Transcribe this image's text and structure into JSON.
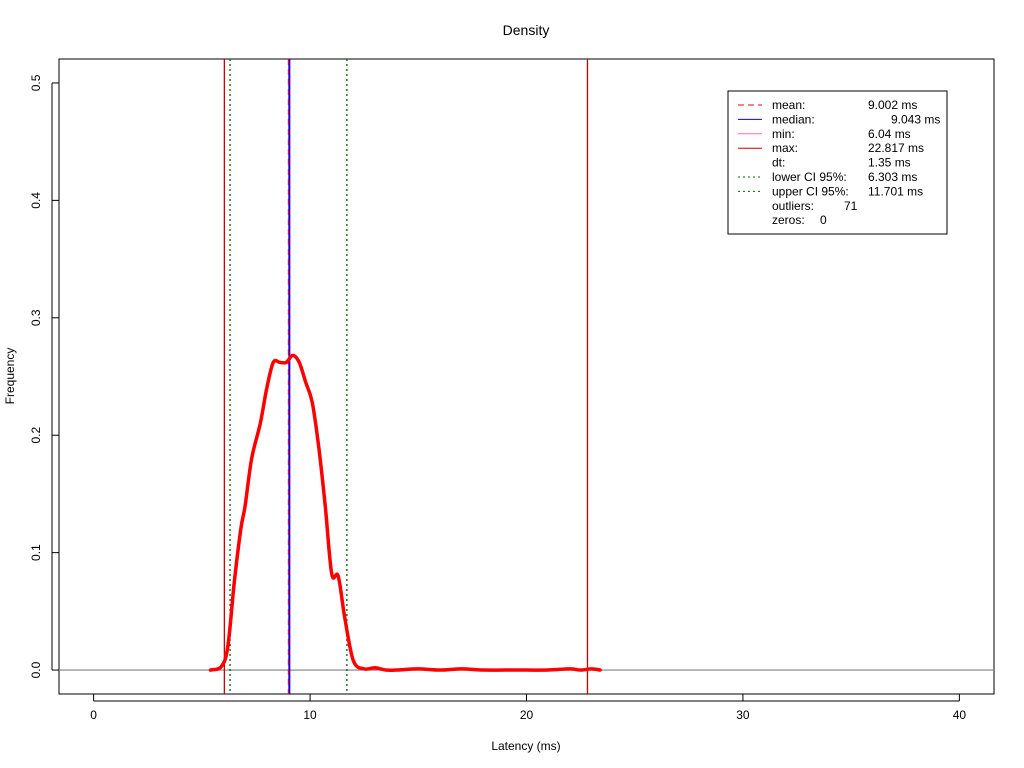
{
  "chart_data": {
    "type": "line",
    "title": "Density",
    "xlabel": "Latency (ms)",
    "ylabel": "Frequency",
    "xlim": [
      -1.6,
      41.6
    ],
    "ylim": [
      -0.0204,
      0.5204
    ],
    "x_ticks": [
      0,
      10,
      20,
      30,
      40
    ],
    "x_tick_labels": [
      "0",
      "10",
      "20",
      "30",
      "40"
    ],
    "y_ticks": [
      0.0,
      0.1,
      0.2,
      0.3,
      0.4,
      0.5
    ],
    "y_tick_labels": [
      "0.0",
      "0.1",
      "0.2",
      "0.3",
      "0.4",
      "0.5"
    ],
    "grid": false,
    "legend_position": "top-right",
    "series": [
      {
        "color": "#ff0000",
        "x": [
          5.4,
          5.9,
          6.2,
          6.5,
          6.8,
          7.0,
          7.3,
          7.7,
          8.0,
          8.3,
          8.6,
          8.9,
          9.2,
          9.5,
          9.8,
          10.1,
          10.4,
          10.7,
          11.0,
          11.3,
          11.6,
          12.0,
          12.5,
          13.0,
          13.5,
          14.0,
          15.0,
          16.0,
          17.0,
          18.0,
          19.0,
          20.0,
          21.0,
          22.0,
          22.5,
          23.0,
          23.4
        ],
        "y": [
          0.0,
          0.003,
          0.02,
          0.075,
          0.12,
          0.14,
          0.18,
          0.21,
          0.24,
          0.262,
          0.262,
          0.262,
          0.268,
          0.262,
          0.245,
          0.228,
          0.19,
          0.14,
          0.082,
          0.08,
          0.045,
          0.008,
          0.001,
          0.002,
          0.0,
          0.0,
          0.001,
          0.0,
          0.001,
          0.0,
          0.0,
          0.0,
          0.0,
          0.001,
          0.0,
          0.001,
          0.0
        ]
      }
    ],
    "reference_lines": [
      {
        "key": "mean",
        "x": 9.002,
        "color": "#ff0000",
        "dash": "dashed"
      },
      {
        "key": "median",
        "x": 9.043,
        "color": "#0000ff",
        "dash": "solid"
      },
      {
        "key": "min",
        "x": 6.04,
        "color": "#cc0000",
        "dash": "solid"
      },
      {
        "key": "max",
        "x": 22.817,
        "color": "#cc0000",
        "dash": "solid"
      },
      {
        "key": "lower_ci",
        "x": 6.303,
        "color": "#006400",
        "dash": "dotted"
      },
      {
        "key": "upper_ci",
        "x": 11.701,
        "color": "#006400",
        "dash": "dotted"
      }
    ],
    "baseline": {
      "y": 0,
      "color": "#808080"
    },
    "legend": [
      {
        "key": "mean",
        "label": "mean:",
        "value": "9.002 ms",
        "line_color": "#ff0000",
        "dash": "dashed"
      },
      {
        "key": "median",
        "label": "median:",
        "value": "9.043 ms",
        "line_color": "#0000ff",
        "dash": "solid"
      },
      {
        "key": "min",
        "label": "min:",
        "value": "6.04 ms",
        "line_color": "#ff69b4",
        "dash": "solid"
      },
      {
        "key": "max",
        "label": "max:",
        "value": "22.817 ms",
        "line_color": "#cc0000",
        "dash": "solid"
      },
      {
        "key": "dt",
        "label": "dt:",
        "value": "1.35 ms",
        "line_color": null,
        "dash": null
      },
      {
        "key": "lower_ci",
        "label": "lower CI 95%:",
        "value": "6.303 ms",
        "line_color": "#006400",
        "dash": "dotted"
      },
      {
        "key": "upper_ci",
        "label": "upper CI 95%:",
        "value": "11.701 ms",
        "line_color": "#006400",
        "dash": "dotted"
      },
      {
        "key": "outliers",
        "label": "outliers:",
        "value": "71",
        "line_color": null,
        "dash": null
      },
      {
        "key": "zeros",
        "label": "zeros:",
        "value": "0",
        "line_color": null,
        "dash": null
      }
    ]
  }
}
